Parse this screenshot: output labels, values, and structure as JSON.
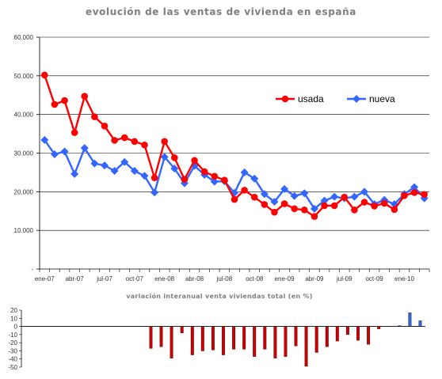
{
  "chart_data": [
    {
      "type": "line",
      "title": "evolución de las ventas de vivienda en españa",
      "ylim": [
        0,
        60000
      ],
      "y_ticks": [
        "-",
        "10.000",
        "20.000",
        "30.000",
        "40.000",
        "50.000",
        "60.000"
      ],
      "x_tick_labels": [
        "ene-07",
        "abr-07",
        "jul-07",
        "oct-07",
        "ene-08",
        "abr-08",
        "jul-08",
        "oct-08",
        "ene-09",
        "abr-09",
        "jul-09",
        "oct-09",
        "ene-10"
      ],
      "grid": "horizontal",
      "legend_position": "right",
      "series": [
        {
          "name": "usada",
          "color": "#ff0000",
          "marker": "circle",
          "values": [
            50200,
            42600,
            43600,
            35300,
            44700,
            39400,
            37000,
            33300,
            34000,
            33000,
            32100,
            23600,
            33000,
            28800,
            23200,
            28100,
            25200,
            24000,
            23000,
            18000,
            20400,
            18600,
            16700,
            14700,
            16900,
            15600,
            15300,
            13600,
            16400,
            16400,
            18600,
            15300,
            17300,
            16300,
            17000,
            15400,
            19000,
            19800,
            19300
          ]
        },
        {
          "name": "nueva",
          "color": "#3366ff",
          "marker": "diamond",
          "values": [
            33400,
            29700,
            30400,
            24600,
            31300,
            27300,
            26800,
            25400,
            27700,
            25400,
            24100,
            19800,
            29000,
            26000,
            22200,
            26700,
            24400,
            22600,
            22700,
            19700,
            25000,
            23400,
            19400,
            17400,
            20700,
            18900,
            19600,
            15600,
            17700,
            18700,
            18300,
            18700,
            20000,
            16800,
            17900,
            16800,
            19400,
            21200,
            18300
          ]
        }
      ]
    },
    {
      "type": "bar",
      "title": "variación interanual venta viviendas total (en %)",
      "ylim": [
        -50,
        20
      ],
      "y_ticks": [
        "-50",
        "-40",
        "-30",
        "-20",
        "-10",
        "0",
        "10",
        "20"
      ],
      "series": [
        {
          "name": "usada",
          "color": "#cc0000",
          "values": [
            null,
            null,
            null,
            null,
            null,
            null,
            null,
            null,
            null,
            null,
            null,
            null,
            -27,
            -25,
            -39,
            -8,
            -35,
            -30,
            -29,
            -35,
            -28,
            -28,
            -37,
            -28,
            -39,
            -37,
            -24,
            -49,
            -32,
            -25,
            -18,
            -10,
            -17,
            -22,
            -3,
            null,
            null,
            null,
            null
          ]
        },
        {
          "name": "nueva",
          "color": "#3366cc",
          "values": [
            null,
            null,
            null,
            null,
            null,
            null,
            null,
            null,
            null,
            null,
            null,
            null,
            null,
            null,
            null,
            null,
            null,
            null,
            null,
            null,
            null,
            null,
            null,
            null,
            null,
            null,
            null,
            null,
            null,
            null,
            null,
            null,
            null,
            null,
            null,
            null,
            1,
            17,
            7
          ]
        }
      ]
    }
  ]
}
